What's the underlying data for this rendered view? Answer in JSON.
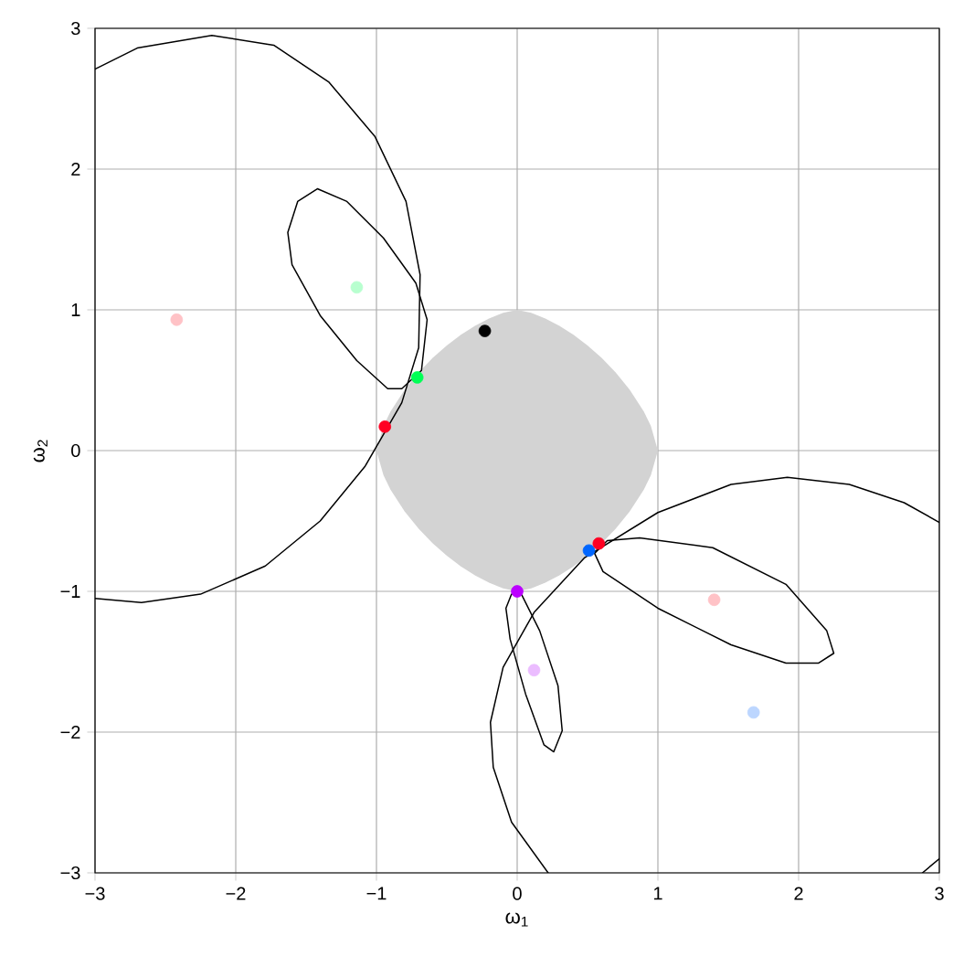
{
  "chart_data": {
    "type": "line",
    "xlabel": "ω$_{1}$",
    "ylabel": "ω$_{2}$",
    "xlim": [
      -3,
      3
    ],
    "ylim": [
      -3,
      3
    ],
    "grid": true,
    "xticks": [
      {
        "value": -3,
        "label": "−3"
      },
      {
        "value": -2,
        "label": "−2"
      },
      {
        "value": -1,
        "label": "−1"
      },
      0,
      1,
      2,
      3
    ],
    "yticks": [
      {
        "value": -3,
        "label": "−3"
      },
      {
        "value": -2,
        "label": "−2"
      },
      {
        "value": -1,
        "label": "−1"
      },
      0,
      1,
      2,
      3
    ],
    "series": [
      {
        "type": "area",
        "color": "#d3d3d3",
        "x": [
          0,
          0.1,
          0.2,
          0.3,
          0.4,
          0.5,
          0.6,
          0.7,
          0.8,
          0.9,
          0.95,
          1,
          0.95,
          0.9,
          0.8,
          0.7,
          0.6,
          0.5,
          0.4,
          0.3,
          0.2,
          0.1,
          0,
          -0.1,
          -0.2,
          -0.3,
          -0.4,
          -0.5,
          -0.6,
          -0.7,
          -0.8,
          -0.9,
          -0.95,
          -1,
          -0.95,
          -0.9,
          -0.8,
          -0.7,
          -0.6,
          -0.5,
          -0.4,
          -0.3,
          -0.2,
          -0.1
        ],
        "values": [
          1,
          0.979,
          0.939,
          0.887,
          0.823,
          0.747,
          0.659,
          0.555,
          0.432,
          0.277,
          0.176,
          0,
          -0.176,
          -0.277,
          -0.432,
          -0.555,
          -0.659,
          -0.747,
          -0.823,
          -0.887,
          -0.939,
          -0.979,
          -1,
          -0.979,
          -0.939,
          -0.887,
          -0.823,
          -0.747,
          -0.659,
          -0.555,
          -0.432,
          -0.277,
          -0.176,
          0,
          0.176,
          0.277,
          0.432,
          0.555,
          0.659,
          0.747,
          0.823,
          0.887,
          0.939,
          0.979
        ]
      },
      {
        "color": "#000000",
        "x": [
          -3,
          -2.7,
          -2.17,
          -1.73,
          -1.34,
          -1.01,
          -0.79,
          -0.69,
          -0.7,
          -0.82,
          -1.08,
          -1.4,
          -1.79,
          -2.25,
          -2.67,
          -3
        ],
        "values": [
          2.71,
          2.86,
          2.95,
          2.88,
          2.62,
          2.23,
          1.77,
          1.25,
          0.73,
          0.34,
          -0.11,
          -0.5,
          -0.82,
          -1.02,
          -1.08,
          -1.05
        ]
      },
      {
        "color": "#000000",
        "x": [
          -1.63,
          -1.56,
          -1.42,
          -1.21,
          -0.95,
          -0.72,
          -0.64,
          null,
          -0.64,
          -0.68,
          -0.82,
          -0.92,
          -1.14,
          -1.4,
          -1.6,
          -1.63
        ],
        "values": [
          1.55,
          1.77,
          1.86,
          1.77,
          1.51,
          1.19,
          0.93,
          null,
          0.93,
          0.57,
          0.44,
          0.44,
          0.64,
          0.96,
          1.32,
          1.55
        ]
      },
      {
        "color": "#000000",
        "x": [
          0.22,
          -0.04,
          -0.17,
          -0.19,
          null,
          -0.19,
          -0.1,
          0.12,
          0.48,
          1.0,
          1.52,
          1.92,
          2.36,
          2.75,
          3,
          null,
          2.88,
          3
        ],
        "values": [
          -3,
          -2.64,
          -2.25,
          -1.93,
          null,
          -1.93,
          -1.54,
          -1.15,
          -0.76,
          -0.44,
          -0.24,
          -0.19,
          -0.24,
          -0.37,
          -0.51,
          null,
          -3,
          -2.9
        ]
      },
      {
        "color": "#000000",
        "x": [
          0.55,
          0.64,
          0.87,
          1.39,
          1.91,
          2.2,
          2.25,
          null,
          2.25,
          2.14,
          1.91,
          1.52,
          1.0,
          0.61,
          0.55
        ],
        "values": [
          -0.73,
          -0.64,
          -0.62,
          -0.69,
          -0.95,
          -1.28,
          -1.44,
          null,
          -1.44,
          -1.51,
          -1.51,
          -1.38,
          -1.12,
          -0.86,
          -0.73
        ]
      },
      {
        "color": "#000000",
        "x": [
          -0.08,
          -0.04,
          0.03,
          0.16,
          0.29,
          0.32,
          null,
          0.32,
          0.26,
          0.19,
          0.06,
          -0.05,
          -0.08
        ],
        "values": [
          -1.12,
          -1.02,
          -1.02,
          -1.28,
          -1.67,
          -1.99,
          null,
          -1.99,
          -2.14,
          -2.09,
          -1.73,
          -1.34,
          -1.12
        ]
      },
      {
        "type": "scatter",
        "marker": "circle",
        "x": [
          -2.42,
          -1.14,
          1.4,
          1.68,
          0.12,
          -0.23,
          -0.71,
          -0.94,
          0.51,
          0.58,
          0
        ],
        "values": [
          0.93,
          1.16,
          -1.06,
          -1.86,
          -1.56,
          0.85,
          0.52,
          0.17,
          -0.71,
          -0.66,
          -1.0
        ],
        "colors": [
          "#ffc2c6",
          "#b8ffcf",
          "#ffc2c6",
          "#bcd6ff",
          "#ebbcff",
          "#000000",
          "#00ff55",
          "#ff0022",
          "#0066ff",
          "#ff0022",
          "#bb00ff"
        ]
      }
    ]
  }
}
